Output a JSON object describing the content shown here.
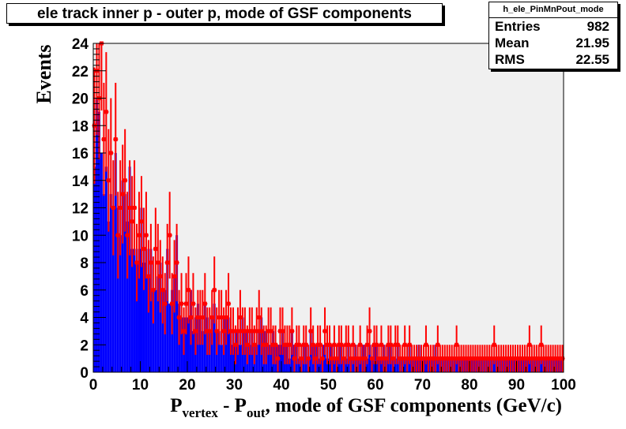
{
  "title": "ele track inner p - outer p, mode of GSF components",
  "stats": {
    "name": "h_ele_PinMnPout_mode",
    "rows": [
      {
        "label": "Entries",
        "value": "982"
      },
      {
        "label": "Mean",
        "value": "21.95"
      },
      {
        "label": "RMS",
        "value": "22.55"
      }
    ]
  },
  "colors": {
    "frame_bg": "#f0f0f0",
    "blue_series": "#0000ff",
    "red_series": "#ff0000"
  },
  "chart_data": {
    "type": "bar",
    "title": "ele track inner p - outer p, mode of GSF components",
    "xlabel": {
      "main": "P",
      "sub1": "vertex",
      "mid": " - P",
      "sub2": "out",
      "rest": ", mode of GSF components (GeV/c)"
    },
    "ylabel": "Events",
    "xlim": [
      0,
      100
    ],
    "ylim": [
      0,
      24
    ],
    "x_ticks": [
      0,
      10,
      20,
      30,
      40,
      50,
      60,
      70,
      80,
      90,
      100
    ],
    "y_ticks": [
      0,
      2,
      4,
      6,
      8,
      10,
      12,
      14,
      16,
      18,
      20,
      22,
      24
    ],
    "bin_width": 0.5,
    "series": [
      {
        "name": "",
        "style": "filled histogram (blue)",
        "values": [
          15,
          20,
          19,
          16,
          13,
          15,
          11,
          13,
          12,
          16,
          12,
          10,
          14,
          13,
          11,
          15,
          9,
          9,
          8,
          9,
          12,
          8,
          9,
          7,
          9,
          6,
          6,
          7,
          8,
          6,
          6,
          9,
          5,
          6,
          7,
          10,
          5,
          4,
          4,
          4,
          4,
          6,
          3,
          4,
          5,
          4,
          3,
          5,
          4,
          3,
          4,
          5,
          3,
          3,
          2,
          4,
          4,
          4,
          3,
          2,
          3,
          3,
          2,
          4,
          3,
          3,
          2,
          3,
          2,
          2,
          3,
          4,
          3,
          3,
          2,
          2,
          3,
          2,
          2,
          2,
          3,
          2,
          2,
          1,
          3,
          2,
          2,
          1,
          1,
          2,
          2,
          1,
          3,
          2,
          2,
          2,
          1,
          2,
          2,
          1,
          2,
          2,
          1,
          1,
          2,
          2,
          1,
          1,
          2,
          1,
          1,
          2,
          1,
          1,
          2,
          2,
          1,
          2,
          1,
          2,
          2,
          1,
          1,
          2,
          1,
          2,
          2,
          1,
          1,
          2,
          1,
          1,
          1,
          1,
          2,
          1,
          1,
          1,
          2,
          1,
          1,
          1,
          1,
          1,
          1,
          2,
          1,
          1,
          1,
          1,
          1,
          1,
          1,
          1,
          1,
          1,
          1,
          1,
          1,
          1,
          1,
          1,
          1,
          1,
          1,
          1,
          1,
          1,
          1,
          1,
          1,
          1,
          1,
          1,
          1,
          1,
          1,
          1,
          1,
          1,
          1,
          1,
          1,
          1,
          1,
          1,
          1,
          1,
          1,
          1,
          1,
          1,
          1,
          1,
          1,
          1,
          1,
          1,
          1,
          1
        ]
      },
      {
        "name": "",
        "style": "markers with error bars (red)",
        "values": [
          18,
          22,
          20,
          24,
          17,
          19,
          14,
          16,
          12,
          17,
          10,
          12,
          13,
          14,
          10,
          12,
          11,
          12,
          8,
          10,
          11,
          9,
          10,
          7,
          8,
          6,
          9,
          8,
          7,
          6,
          5,
          8,
          10,
          5,
          7,
          8,
          4,
          5,
          3,
          5,
          6,
          4,
          5,
          3,
          4,
          4,
          4,
          5,
          3,
          3,
          4,
          6,
          3,
          4,
          4,
          3,
          4,
          5,
          3,
          3,
          2,
          3,
          4,
          3,
          3,
          2,
          3,
          3,
          2,
          3,
          4,
          3,
          2,
          2,
          3,
          3,
          2,
          2,
          1,
          3,
          3,
          2,
          2,
          2,
          3,
          1,
          2,
          2,
          1,
          2,
          2,
          1,
          3,
          2,
          1,
          2,
          2,
          1,
          3,
          2,
          2,
          1,
          2,
          1,
          2,
          2,
          1,
          2,
          2,
          1,
          2,
          1,
          1,
          2,
          1,
          1,
          2,
          3,
          1,
          2,
          2,
          1,
          2,
          1,
          1,
          2,
          2,
          1,
          2,
          2,
          1,
          1,
          2,
          1,
          2,
          1,
          1,
          1,
          1,
          1,
          1,
          2,
          1,
          1,
          1,
          1,
          2,
          1,
          1,
          1,
          1,
          1,
          1,
          1,
          2,
          1,
          1,
          1,
          1,
          1,
          1,
          1,
          1,
          1,
          1,
          1,
          1,
          1,
          1,
          1,
          2,
          1,
          1,
          1,
          1,
          1,
          1,
          1,
          1,
          1,
          1,
          1,
          1,
          1,
          1,
          2,
          1,
          1,
          1,
          1,
          2,
          1,
          1,
          1,
          1,
          1,
          1,
          1,
          1,
          1
        ]
      }
    ]
  }
}
